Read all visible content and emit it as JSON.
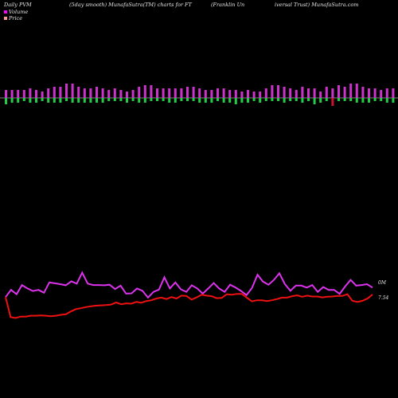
{
  "header": {
    "left": "Daily PVM",
    "mid": "(5day smooth) MunafaSutra(TM) charts for FT",
    "right1": "(Franklin Un",
    "right2": "iversal Trust) MunafaSutra.com"
  },
  "legend": {
    "volume_label": "Volume",
    "price_label": "Price",
    "volume_color": "#ff00ff",
    "price_color": "#ff9999"
  },
  "chart_data": {
    "type": "bar",
    "title": "Daily PVM",
    "volume": {
      "name": "Volume",
      "pos_color": "#cc33cc",
      "neg_color": "#22cc44",
      "down_color": "#cc1133",
      "up": [
        5,
        5,
        5,
        5,
        6,
        5,
        4,
        6,
        7,
        7,
        9,
        9,
        7,
        6,
        6,
        7,
        6,
        5,
        6,
        5,
        4,
        5,
        7,
        8,
        8,
        6,
        6,
        6,
        6,
        6,
        7,
        7,
        6,
        5,
        5,
        6,
        6,
        5,
        5,
        4,
        5,
        4,
        4,
        6,
        8,
        8,
        7,
        6,
        5,
        7,
        6,
        6,
        4,
        7,
        6,
        8,
        7,
        9,
        9,
        7,
        6,
        6,
        5,
        6,
        6,
        5,
        5,
        4,
        6,
        8,
        9,
        9,
        7
      ],
      "down": [
        4,
        3,
        3,
        2,
        3,
        3,
        2,
        3,
        3,
        3,
        2,
        3,
        3,
        3,
        3,
        3,
        3,
        2,
        2,
        2,
        3,
        2,
        3,
        3,
        2,
        2,
        2,
        3,
        3,
        2,
        2,
        2,
        3,
        3,
        3,
        2,
        3,
        3,
        4,
        3,
        3,
        2,
        3,
        2,
        2,
        2,
        3,
        2,
        2,
        3,
        2,
        4,
        3,
        2,
        5,
        2,
        2,
        2,
        3,
        3,
        3,
        2,
        2,
        3,
        3,
        2,
        2,
        3,
        2,
        4,
        3,
        3,
        5
      ],
      "red_bars": [
        54,
        66,
        70
      ]
    },
    "series": [
      {
        "name": "PVM",
        "color": "#dd33ee",
        "values": [
          0.5,
          3.0,
          1.5,
          4.7,
          3.5,
          2.6,
          3.0,
          2.0,
          5.6,
          5.3,
          5.0,
          4.6,
          6.0,
          5.2,
          9.0,
          5.2,
          4.7,
          4.7,
          4.6,
          4.8,
          3.3,
          4.5,
          1.7,
          1.8,
          3.5,
          2.7,
          0.3,
          2.3,
          3.1,
          7.4,
          3.5,
          5.6,
          3.2,
          2.3,
          4.6,
          3.5,
          1.7,
          3.5,
          5.4,
          3.5,
          2.3,
          4.8,
          3.8,
          2.6,
          1.2,
          3.7,
          8.3,
          5.9,
          4.8,
          6.5,
          8.8,
          5.0,
          2.7,
          4.5,
          4.5,
          3.8,
          4.7,
          2.3,
          4.0,
          3.0,
          3.0,
          1.6,
          4.2,
          6.5,
          4.5,
          4.7,
          5.0,
          3.8
        ]
      },
      {
        "name": "Price",
        "color": "#ee1111",
        "values": [
          0.5,
          -6.5,
          -6.8,
          -6.3,
          -6.3,
          -6.0,
          -6.0,
          -5.9,
          -6.0,
          -6.2,
          -6.0,
          -5.7,
          -5.5,
          -4.5,
          -3.7,
          -3.4,
          -3.0,
          -2.7,
          -2.5,
          -2.4,
          -2.3,
          -2.1,
          -1.4,
          -2.0,
          -1.7,
          -1.8,
          -1.2,
          -1.5,
          -0.9,
          -0.6,
          0.0,
          0.3,
          -0.2,
          0.5,
          0.0,
          1.0,
          0.9,
          -0.4,
          0.4,
          1.3,
          1.0,
          0.8,
          0.1,
          0.2,
          1.5,
          1.3,
          1.6,
          1.6,
          0.3,
          -1.0,
          -0.6,
          -0.6,
          -0.9,
          -0.6,
          -0.2,
          0.3,
          0.3,
          0.8,
          1.1,
          0.6,
          1.0,
          0.7,
          0.7,
          0.4,
          0.6,
          0.7,
          0.9,
          0.9,
          1.5,
          -0.8,
          -1.2,
          -0.8,
          0.0,
          1.4
        ]
      }
    ],
    "right_labels": {
      "pvm": "0M",
      "price": "7.54"
    }
  }
}
